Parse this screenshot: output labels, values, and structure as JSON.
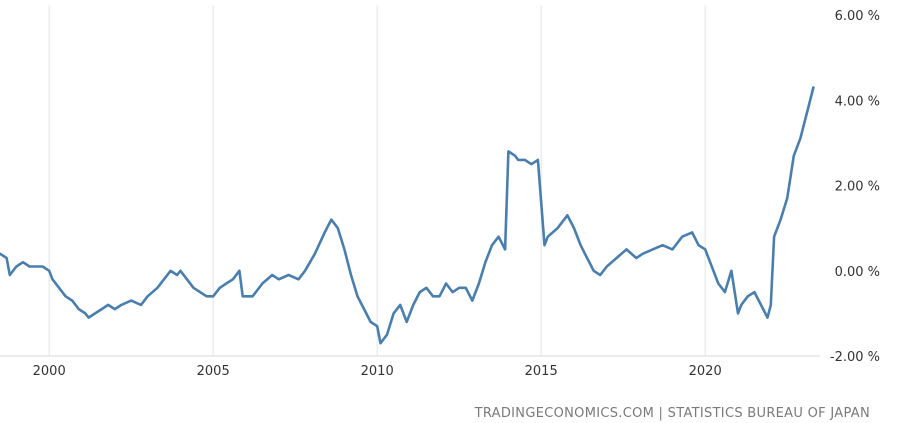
{
  "chart_data": {
    "type": "line",
    "title": "",
    "xlabel": "",
    "ylabel": "",
    "xlim": [
      1998.5,
      2023.5
    ],
    "ylim": [
      -2,
      6
    ],
    "x_ticks": [
      2000,
      2005,
      2010,
      2015,
      2020
    ],
    "x_tick_labels": [
      "2000",
      "2005",
      "2010",
      "2015",
      "2020"
    ],
    "y_ticks": [
      -2,
      0,
      2,
      4,
      6
    ],
    "y_tick_labels": [
      "-2.00 %",
      "0.00 %",
      "2.00 %",
      "4.00 %",
      "6.00 %"
    ],
    "grid": {
      "vertical": true,
      "horizontal": false
    },
    "series": [
      {
        "color": "#4a7fad",
        "x": [
          1998.5,
          1998.7,
          1998.8,
          1999.0,
          1999.2,
          1999.4,
          1999.6,
          1999.8,
          2000.0,
          2000.1,
          2000.3,
          2000.5,
          2000.7,
          2000.9,
          2001.1,
          2001.2,
          2001.4,
          2001.6,
          2001.8,
          2002.0,
          2002.2,
          2002.5,
          2002.8,
          2003.0,
          2003.3,
          2003.5,
          2003.7,
          2003.9,
          2004.0,
          2004.2,
          2004.4,
          2004.6,
          2004.8,
          2005.0,
          2005.2,
          2005.4,
          2005.6,
          2005.8,
          2005.9,
          2006.2,
          2006.5,
          2006.8,
          2007.0,
          2007.3,
          2007.6,
          2007.8,
          2008.1,
          2008.4,
          2008.6,
          2008.8,
          2009.0,
          2009.2,
          2009.4,
          2009.6,
          2009.8,
          2010.0,
          2010.1,
          2010.3,
          2010.5,
          2010.7,
          2010.9,
          2011.1,
          2011.3,
          2011.5,
          2011.7,
          2011.9,
          2012.1,
          2012.3,
          2012.5,
          2012.7,
          2012.9,
          2013.1,
          2013.3,
          2013.5,
          2013.7,
          2013.9,
          2014.0,
          2014.2,
          2014.3,
          2014.5,
          2014.7,
          2014.9,
          2015.1,
          2015.2,
          2015.5,
          2015.8,
          2016.0,
          2016.2,
          2016.4,
          2016.6,
          2016.8,
          2017.0,
          2017.3,
          2017.6,
          2017.9,
          2018.1,
          2018.4,
          2018.7,
          2019.0,
          2019.3,
          2019.6,
          2019.8,
          2020.0,
          2020.2,
          2020.4,
          2020.6,
          2020.8,
          2021.0,
          2021.1,
          2021.3,
          2021.5,
          2021.7,
          2021.9,
          2022.0,
          2022.1,
          2022.3,
          2022.5,
          2022.7,
          2022.9,
          2023.1,
          2023.3
        ],
        "values": [
          0.4,
          0.3,
          -0.1,
          0.1,
          0.2,
          0.1,
          0.1,
          0.1,
          0.0,
          -0.2,
          -0.4,
          -0.6,
          -0.7,
          -0.9,
          -1.0,
          -1.1,
          -1.0,
          -0.9,
          -0.8,
          -0.9,
          -0.8,
          -0.7,
          -0.8,
          -0.6,
          -0.4,
          -0.2,
          0.0,
          -0.1,
          0.0,
          -0.2,
          -0.4,
          -0.5,
          -0.6,
          -0.6,
          -0.4,
          -0.3,
          -0.2,
          0.0,
          -0.6,
          -0.6,
          -0.3,
          -0.1,
          -0.2,
          -0.1,
          -0.2,
          0.0,
          0.4,
          0.9,
          1.2,
          1.0,
          0.5,
          -0.1,
          -0.6,
          -0.9,
          -1.2,
          -1.3,
          -1.7,
          -1.5,
          -1.0,
          -0.8,
          -1.2,
          -0.8,
          -0.5,
          -0.4,
          -0.6,
          -0.6,
          -0.3,
          -0.5,
          -0.4,
          -0.4,
          -0.7,
          -0.3,
          0.2,
          0.6,
          0.8,
          0.5,
          2.8,
          2.7,
          2.6,
          2.6,
          2.5,
          2.6,
          0.6,
          0.8,
          1.0,
          1.3,
          1.0,
          0.6,
          0.3,
          0.0,
          -0.1,
          0.1,
          0.3,
          0.5,
          0.3,
          0.4,
          0.5,
          0.6,
          0.5,
          0.8,
          0.9,
          0.6,
          0.5,
          0.1,
          -0.3,
          -0.5,
          0.0,
          -1.0,
          -0.8,
          -0.6,
          -0.5,
          -0.8,
          -1.1,
          -0.8,
          0.8,
          1.2,
          1.7,
          2.7,
          3.1,
          3.7,
          4.3
        ]
      }
    ]
  },
  "source": {
    "text": "TRADINGECONOMICS.COM | STATISTICS BUREAU OF JAPAN"
  }
}
